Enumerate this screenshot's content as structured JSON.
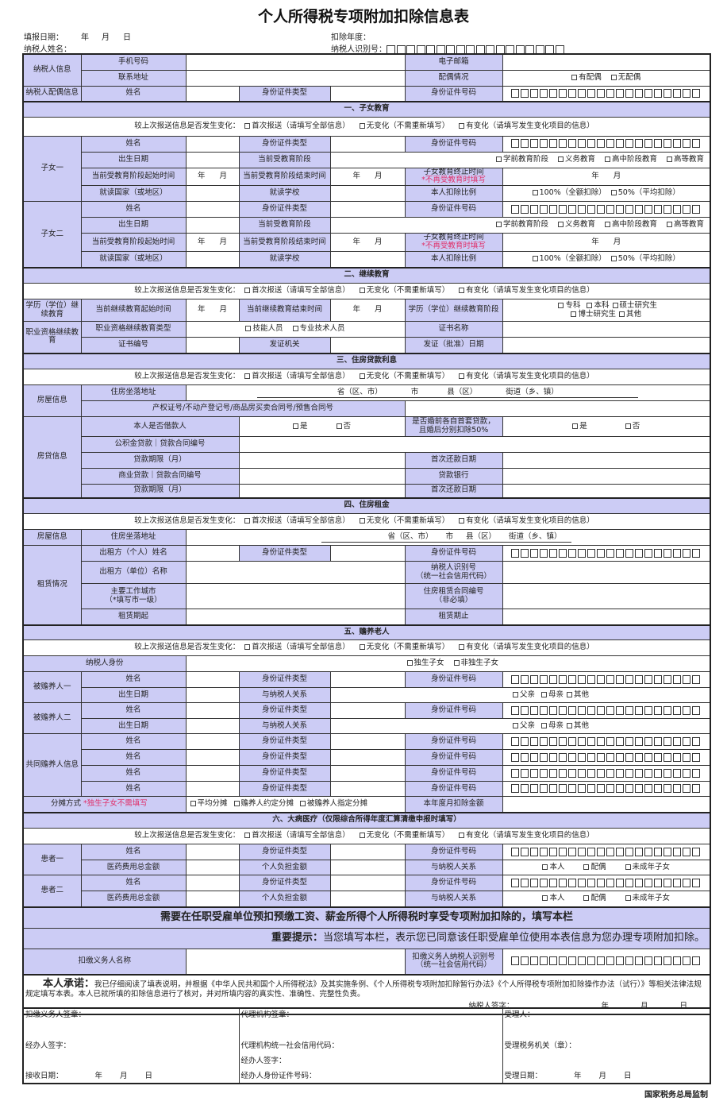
{
  "title": "个人所得税专项附加扣除信息表",
  "header": {
    "fill_date_label": "填报日期：",
    "taxpayer_name_label": "纳税人姓名：",
    "deduction_year_label": "扣除年度：",
    "taxpayer_id_label": "纳税人识别号："
  },
  "c": {
    "name": "姓名",
    "id_type": "身份证件类型",
    "id_no": "身份证件号码",
    "birth": "出生日期",
    "year": "年",
    "month": "月",
    "day": "日",
    "change_q": "较上次报送信息是否发生变化：",
    "first": "首次报送（请填写全部信息）",
    "nochange": "无变化（不需重新填写）",
    "changed": "有变化（请填写发生变化项目的信息）"
  },
  "taxpayer": {
    "info": "纳税人信息",
    "phone": "手机号码",
    "email": "电子邮箱",
    "address": "联系地址",
    "spouse_status": "配偶情况",
    "has_spouse": "有配偶",
    "no_spouse": "无配偶",
    "spouse_info": "纳税人配偶信息"
  },
  "s1": {
    "title": "一、子女教育",
    "child1": "子女一",
    "child2": "子女二",
    "stage": "当前受教育阶段",
    "stage_opts": [
      "学前教育阶段",
      "义务教育",
      "高中阶段教育",
      "高等教育"
    ],
    "start": "当前受教育阶段起始时间",
    "end": "当前受教育阶段结束时间",
    "stop": "子女教育终止时间",
    "stop_note": "*不再受教育时填写",
    "country": "就读国家（或地区）",
    "school": "就读学校",
    "ratio": "本人扣除比例",
    "ratio_opts": [
      "100%（全额扣除）",
      "50%（平均扣除）"
    ]
  },
  "s2": {
    "title": "二、继续教育",
    "degree": "学历（学位）继续教育",
    "start": "当前继续教育起始时间",
    "end": "当前继续教育结束时间",
    "stage": "学历（学位）继续教育阶段",
    "stage_opts": [
      "专科",
      "本科",
      "硕士研究生",
      "博士研究生",
      "其他"
    ],
    "prof": "职业资格继续教育",
    "prof_type": "职业资格继续教育类型",
    "prof_opts": [
      "技能人员",
      "专业技术人员"
    ],
    "cert_name": "证书名称",
    "cert_no": "证书编号",
    "issuer": "发证机关",
    "issue_date": "发证（批准）日期"
  },
  "s3": {
    "title": "三、住房贷款利息",
    "house": "房屋信息",
    "addr": "住房坐落地址",
    "addr_parts": [
      "省（区、市）",
      "市",
      "县（区）",
      "街道（乡、镇）"
    ],
    "deed": "产权证号/不动产登记号/商品房买卖合同号/预售合同号",
    "loan": "房贷信息",
    "borrower": "本人是否借款人",
    "yes": "是",
    "no": "否",
    "premarital": "是否婚前各自首套贷款，",
    "premarital2": "且婚后分别扣除50%",
    "fund": "公积金贷款｜贷款合同编号",
    "term": "贷款期限（月）",
    "first_pay": "首次还款日期",
    "commercial": "商业贷款｜贷款合同编号",
    "bank": "贷款银行"
  },
  "s4": {
    "title": "四、住房租金",
    "rent": "租赁情况",
    "lessor_person": "出租方（个人）姓名",
    "lessor_org": "出租方（单位）名称",
    "tin": "纳税人识别号",
    "tin2": "（统一社会信用代码）",
    "city": "主要工作城市",
    "city2": "（*填写市一级）",
    "contract": "住房租赁合同编号",
    "contract2": "（非必填）",
    "start": "租赁期起",
    "end": "租赁期止"
  },
  "s5": {
    "title": "五、赡养老人",
    "identity": "纳税人身份",
    "identity_opts": [
      "独生子女",
      "非独生子女"
    ],
    "dep1": "被赡养人一",
    "dep2": "被赡养人二",
    "relation": "与纳税人关系",
    "relation_opts": [
      "父亲",
      "母亲",
      "其他"
    ],
    "co": "共同赡养人信息",
    "split": "分摊方式",
    "split_note": "*独生子女不需填写",
    "split_opts": [
      "平均分摊",
      "赡养人约定分摊",
      "被赡养人指定分摊"
    ],
    "monthly": "本年度月扣除金额"
  },
  "s6": {
    "title": "六、大病医疗（仅限综合所得年度汇算清缴申报时填写）",
    "p1": "患者一",
    "p2": "患者二",
    "total": "医药费用总金额",
    "self_pay": "个人负担金额",
    "relation": "与纳税人关系",
    "relation_opts": [
      "本人",
      "配偶",
      "未成年子女"
    ]
  },
  "employer": {
    "banner": "需要在任职受雇单位预扣预缴工资、薪金所得个人所得税时享受专项附加扣除的，填写本栏",
    "tip_label": "重要提示：",
    "tip_text": "当您填写本栏，表示您已同意该任职受雇单位使用本表信息为您办理专项附加扣除。",
    "name": "扣缴义务人名称",
    "tin": "扣缴义务人纳税人识别号",
    "tin2": "（统一社会信用代码）"
  },
  "pledge": {
    "label": "本人承诺：",
    "text": "我已仔细阅读了填表说明，并根据《中华人民共和国个人所得税法》及其实施条例、《个人所得税专项附加扣除暂行办法》《个人所得税专项附加扣除操作办法（试行）》等相关法律法规规定填写本表。本人已就所填的扣除信息进行了核对，并对所填内容的真实性、准确性、完整性负责。",
    "sign": "纳税人签字："
  },
  "sign": {
    "withholder_seal": "扣缴义务人签章：",
    "handler_sign": "经办人签字：",
    "receive_date": "接收日期：",
    "agency_seal": "代理机构签章：",
    "agency_code": "代理机构统一社会信用代码：",
    "agency_handler": "经办人签字：",
    "agency_handler_id": "经办人身份证件号码：",
    "receiver": "受理人：",
    "tax_office": "受理税务机关（章）：",
    "accept_date": "受理日期："
  },
  "footer": "国家税务总局监制",
  "colors": {
    "label_bg": "#ccccf5",
    "note_red": "#e0306a",
    "border": "#222222"
  }
}
